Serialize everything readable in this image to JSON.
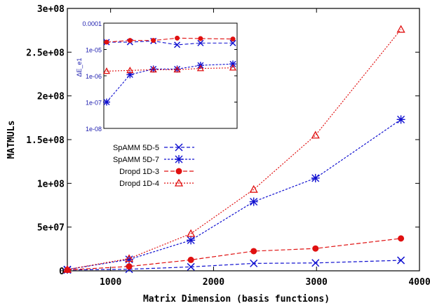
{
  "chart_data": [
    {
      "type": "line",
      "title": "",
      "xlabel": "Matrix Dimension (basis functions)",
      "ylabel": "MATMULs",
      "xlim": [
        580,
        4000
      ],
      "ylim": [
        0,
        300000000
      ],
      "x_ticks": [
        1000,
        2000,
        3000,
        4000
      ],
      "x_tick_labels": [
        "1000",
        "2000",
        "3000",
        "4000"
      ],
      "y_ticks": [
        0,
        50000000,
        100000000,
        150000000,
        200000000,
        250000000,
        300000000
      ],
      "y_tick_labels": [
        "0",
        "5e+07",
        "1e+08",
        "1.5e+08",
        "2e+08",
        "2.5e+08",
        "3e+08"
      ],
      "grid": false,
      "legend_position": "center-left",
      "series": [
        {
          "name": "SpAMM 5D-5",
          "color": "#1010d0",
          "marker": "x",
          "x": [
            580,
            1180,
            1780,
            2390,
            2990,
            3820
          ],
          "values": [
            1000000,
            1800000,
            4500000,
            8500000,
            9000000,
            12000000
          ]
        },
        {
          "name": "SpAMM 5D-7",
          "color": "#1010d0",
          "marker": "star",
          "x": [
            580,
            1180,
            1780,
            2390,
            2990,
            3820
          ],
          "values": [
            1500000,
            13000000,
            35000000,
            79000000,
            106000000,
            173000000
          ]
        },
        {
          "name": "Dropd 1D-3",
          "color": "#e01010",
          "marker": "filled-circle",
          "x": [
            580,
            1180,
            1780,
            2390,
            2990,
            3820
          ],
          "values": [
            1000000,
            5000000,
            12500000,
            22500000,
            25500000,
            37000000
          ]
        },
        {
          "name": "Dropd 1D-4",
          "color": "#e01010",
          "marker": "open-triangle",
          "x": [
            580,
            1180,
            1780,
            2390,
            2990,
            3820
          ],
          "values": [
            1500000,
            14000000,
            42500000,
            93000000,
            155000000,
            276000000
          ]
        }
      ]
    },
    {
      "type": "line",
      "title": "",
      "xlabel": "",
      "ylabel": "ΔE_e1",
      "yscale": "log",
      "ylim": [
        1e-08,
        0.0001
      ],
      "y_ticks": [
        1e-08,
        1e-07,
        1e-06,
        1e-05,
        0.0001
      ],
      "y_tick_labels": [
        "1e-08",
        "1e-07",
        "1e-06",
        "1e-05",
        "0.0001"
      ],
      "x_range_note": "shares x values with main chart",
      "x": [
        580,
        1180,
        1780,
        2390,
        2990,
        3820
      ],
      "series": [
        {
          "name": "SpAMM 5D-5",
          "values": [
            1.9e-05,
            1.9e-05,
            2.1e-05,
            1.5e-05,
            1.75e-05,
            1.75e-05
          ]
        },
        {
          "name": "SpAMM 5D-7",
          "values": [
            1e-07,
            1.1e-06,
            1.8e-06,
            1.8e-06,
            2.5e-06,
            2.8e-06
          ]
        },
        {
          "name": "Dropd 1D-3",
          "values": [
            1.9e-05,
            2.2e-05,
            2.2e-05,
            2.7e-05,
            2.6e-05,
            2.5e-05
          ]
        },
        {
          "name": "Dropd 1D-4",
          "values": [
            1.5e-06,
            1.6e-06,
            1.7e-06,
            1.7e-06,
            1.9e-06,
            2e-06
          ]
        }
      ]
    }
  ]
}
